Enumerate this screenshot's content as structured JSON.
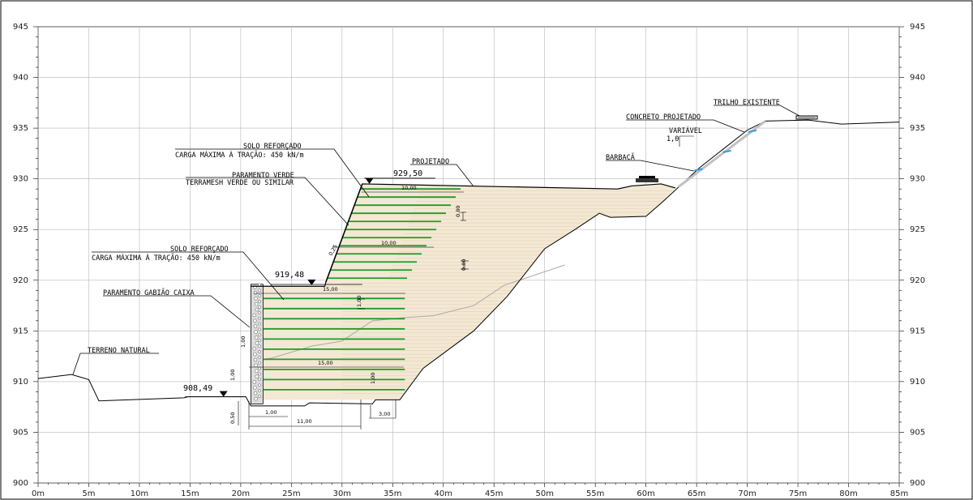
{
  "axes": {
    "x_ticks": [
      "0m",
      "5m",
      "10m",
      "15m",
      "20m",
      "25m",
      "30m",
      "35m",
      "40m",
      "45m",
      "50m",
      "55m",
      "60m",
      "65m",
      "70m",
      "75m",
      "80m",
      "85m"
    ],
    "y_ticks": [
      "945",
      "940",
      "935",
      "930",
      "925",
      "920",
      "915",
      "910",
      "905",
      "900"
    ]
  },
  "chart_data": {
    "type": "diagram",
    "x_unit": "m",
    "y_unit": "elevation (m)",
    "xlim": [
      0,
      85
    ],
    "ylim": [
      900,
      945
    ],
    "grid": true,
    "existing_ground": [
      [
        0,
        910.3
      ],
      [
        3.3,
        910.7
      ],
      [
        5,
        910.2
      ],
      [
        6,
        908.1
      ],
      [
        14.4,
        908.4
      ],
      [
        14.8,
        908.5
      ],
      [
        20.5,
        908.5
      ],
      [
        21,
        907.6
      ],
      [
        26.3,
        907.6
      ],
      [
        26.8,
        907.9
      ],
      [
        33,
        907.8
      ],
      [
        33.3,
        908.2
      ],
      [
        35.7,
        908.2
      ],
      [
        38,
        911.3
      ],
      [
        43,
        915
      ],
      [
        46.3,
        918.4
      ],
      [
        50,
        923.1
      ],
      [
        53,
        925
      ],
      [
        55.4,
        926.6
      ],
      [
        56.5,
        926.2
      ],
      [
        60,
        926.3
      ],
      [
        61.5,
        927.6
      ],
      [
        65.3,
        931.1
      ],
      [
        70,
        934.8
      ],
      [
        71.8,
        935.7
      ],
      [
        76,
        935.8
      ],
      [
        79.3,
        935.4
      ],
      [
        85,
        935.6
      ]
    ],
    "designed_surface": [
      [
        21,
        919.4
      ],
      [
        28.3,
        919.4
      ],
      [
        28.4,
        919.8
      ],
      [
        32,
        929.5
      ],
      [
        57.2,
        929
      ],
      [
        58.6,
        929.3
      ],
      [
        61.5,
        929.5
      ],
      [
        62.9,
        929.1
      ]
    ]
  },
  "labels": {
    "solo_reforcado_top": "SOLO  REFORÇADO",
    "carga_top": "CARGA MÁXIMA À TRAÇÃO: 450  kN/m",
    "paramento_verde": "PARAMENTO  VERDE",
    "terramesh": "TERRAMESH VERDE OU SIMILAR",
    "projetado": "PROJETADO",
    "solo_reforcado_mid": "SOLO  REFORÇADO",
    "carga_mid": "CARGA MÁXIMA À TRAÇÃO: 450  kN/m",
    "paramento_gabiao": "PARAMENTO  GABIÃO  CAIXA",
    "terreno_natural": "TERRENO  NATURAL",
    "concreto_projetado": "CONCRETO  PROJETADO",
    "trilho_existente": "TRILHO  EXISTENTE",
    "variavel": "VARIÁVEL",
    "slope_ratio": "1,0",
    "barbaca": "BARBACÃ"
  },
  "elevations": {
    "top": "929,50",
    "mid": "919,48",
    "base": "908,49"
  },
  "dimensions": {
    "d_10_top": "10,00",
    "d_10_mid": "10,00",
    "d_15_top": "15,00",
    "d_15_mid": "15,00",
    "d_080_a": "0,80",
    "d_080_b": "0,80",
    "d_050": "0,50",
    "d_025": "0,25",
    "d_100_a": "1,00",
    "d_100_b": "1,00",
    "d_100_c": "1,00",
    "d_100_d": "1,00",
    "d_11": "11,00",
    "d_3": "3,00",
    "d_100_e": "1,00"
  },
  "colors": {
    "fill": "#f3e8d4",
    "reinforcement": "#1f9a2a",
    "gabion": "#dcdcdc",
    "terrain": "#000000",
    "old_profile": "#aaaaaa",
    "drain": "#2aa0e6",
    "grid": "#b8b8b8"
  }
}
